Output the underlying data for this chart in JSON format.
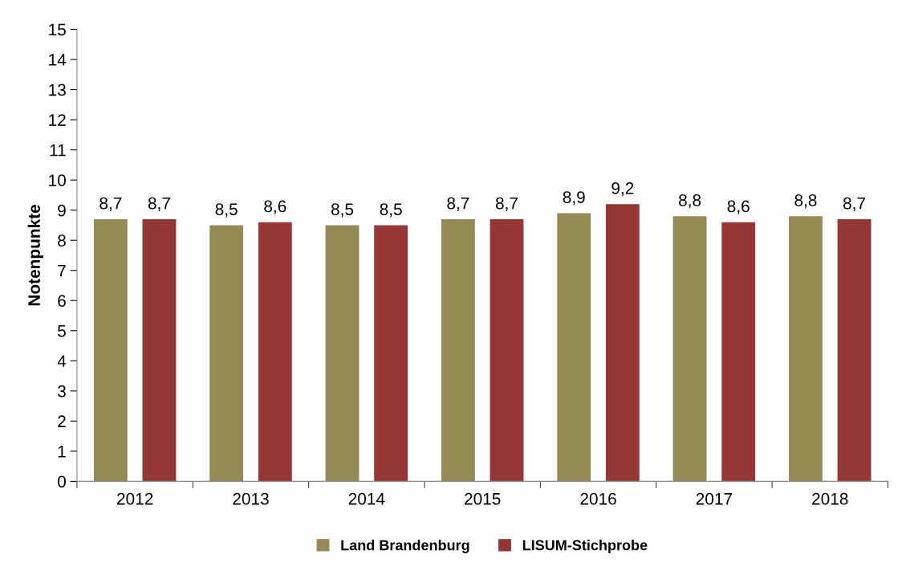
{
  "chart_data": {
    "type": "bar",
    "ylabel": "Notenpunkte",
    "categories": [
      "2012",
      "2013",
      "2014",
      "2015",
      "2016",
      "2017",
      "2018"
    ],
    "series": [
      {
        "name": "Land Brandenburg",
        "color": "#948a54",
        "values": [
          8.7,
          8.5,
          8.5,
          8.7,
          8.9,
          8.8,
          8.8
        ],
        "value_labels": [
          "8,7",
          "8,5",
          "8,5",
          "8,7",
          "8,9",
          "8,8",
          "8,8"
        ]
      },
      {
        "name": "LISUM-Stichprobe",
        "color": "#953735",
        "values": [
          8.7,
          8.6,
          8.5,
          8.7,
          9.2,
          8.6,
          8.7
        ],
        "value_labels": [
          "8,7",
          "8,6",
          "8,5",
          "8,7",
          "9,2",
          "8,6",
          "8,7"
        ]
      }
    ],
    "ylim": [
      0,
      15
    ],
    "yticks": [
      0,
      1,
      2,
      3,
      4,
      5,
      6,
      7,
      8,
      9,
      10,
      11,
      12,
      13,
      14,
      15
    ],
    "grid": false,
    "legend": "bottom"
  }
}
